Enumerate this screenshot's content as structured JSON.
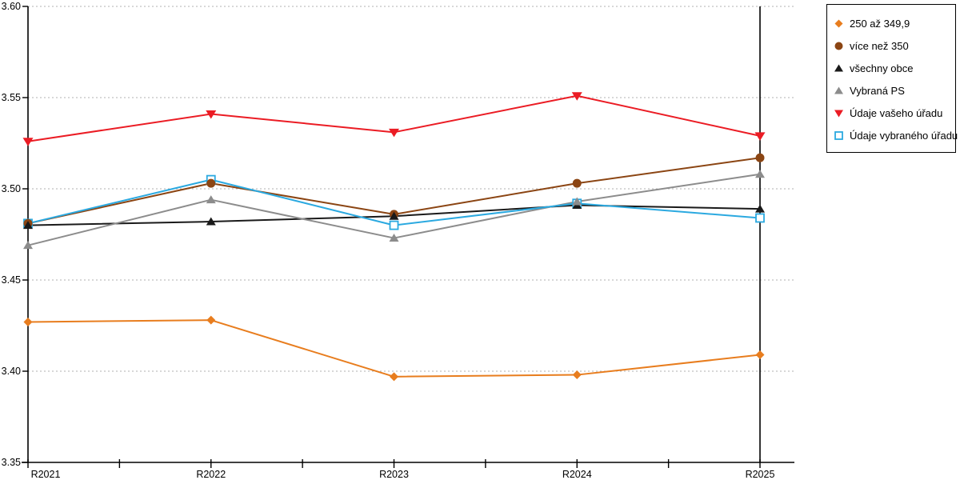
{
  "chart_data": {
    "type": "line",
    "title": "",
    "xlabel": "",
    "ylabel": "",
    "categories": [
      "R2021",
      "R2022",
      "R2023",
      "R2024",
      "R2025"
    ],
    "series": [
      {
        "name": "250 až 349,9",
        "marker": "diamond",
        "color": "#E87D1E",
        "values": [
          3.427,
          3.428,
          3.397,
          3.398,
          3.409
        ]
      },
      {
        "name": "více než 350",
        "marker": "circle",
        "color": "#8B4513",
        "values": [
          3.481,
          3.503,
          3.486,
          3.503,
          3.517
        ]
      },
      {
        "name": "všechny obce",
        "marker": "triangle-up",
        "color": "#1A1A1A",
        "values": [
          3.48,
          3.482,
          3.485,
          3.491,
          3.489
        ]
      },
      {
        "name": "Vybraná PS",
        "marker": "triangle-up",
        "color": "#8C8C8C",
        "values": [
          3.469,
          3.494,
          3.473,
          3.493,
          3.508
        ]
      },
      {
        "name": "Údaje vašeho úřadu",
        "marker": "triangle-down",
        "color": "#EB1C24",
        "values": [
          3.526,
          3.541,
          3.531,
          3.551,
          3.529
        ]
      },
      {
        "name": "Údaje vybraného úřadu",
        "marker": "square-open",
        "color": "#2BA9E0",
        "values": [
          3.481,
          3.505,
          3.48,
          3.492,
          3.484
        ]
      }
    ],
    "ylim": [
      3.35,
      3.6
    ],
    "ytick_step": 0.05,
    "ytick_labels": [
      "3.60",
      "3.55",
      "3.50",
      "3.45",
      "3.40",
      "3.35"
    ],
    "grid": "horizontal-dotted",
    "grid_color": "#B0B0B0",
    "axis_color": "#000000",
    "background_color": "#FFFFFF",
    "legend_position": "top-right",
    "legend_border_color": "#000000"
  }
}
